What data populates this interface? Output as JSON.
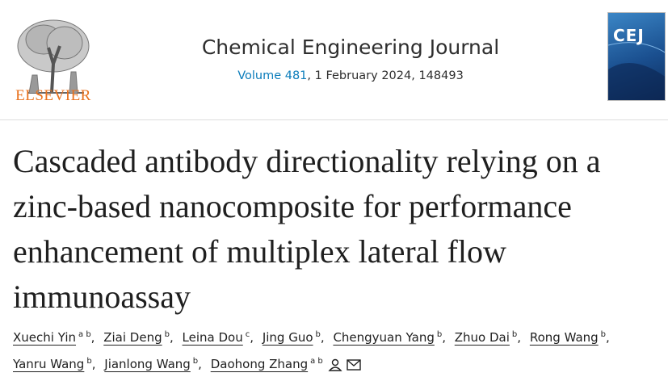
{
  "publisher": {
    "logo_text": "ELSEVIER"
  },
  "journal": {
    "name": "Chemical Engineering Journal",
    "volume": "Volume 481",
    "issue_info": ", 1 February 2024, 148493"
  },
  "cover": {
    "label": "CEJ"
  },
  "article": {
    "title": "Cascaded antibody directionality relying on a zinc-based nanocomposite for performance enhancement of multiplex lateral flow immunoassay",
    "authors": [
      {
        "name": "Xuechi Yin",
        "affiliations": "a b"
      },
      {
        "name": "Ziai Deng",
        "affiliations": "b"
      },
      {
        "name": "Leina Dou",
        "affiliations": "c"
      },
      {
        "name": "Jing Guo",
        "affiliations": "b"
      },
      {
        "name": "Chengyuan Yang",
        "affiliations": "b"
      },
      {
        "name": "Zhuo Dai",
        "affiliations": "b"
      },
      {
        "name": "Rong Wang",
        "affiliations": "b"
      },
      {
        "name": "Yanru Wang",
        "affiliations": "b"
      },
      {
        "name": "Jianlong Wang",
        "affiliations": "b"
      },
      {
        "name": "Daohong Zhang",
        "affiliations": "a b"
      }
    ]
  }
}
